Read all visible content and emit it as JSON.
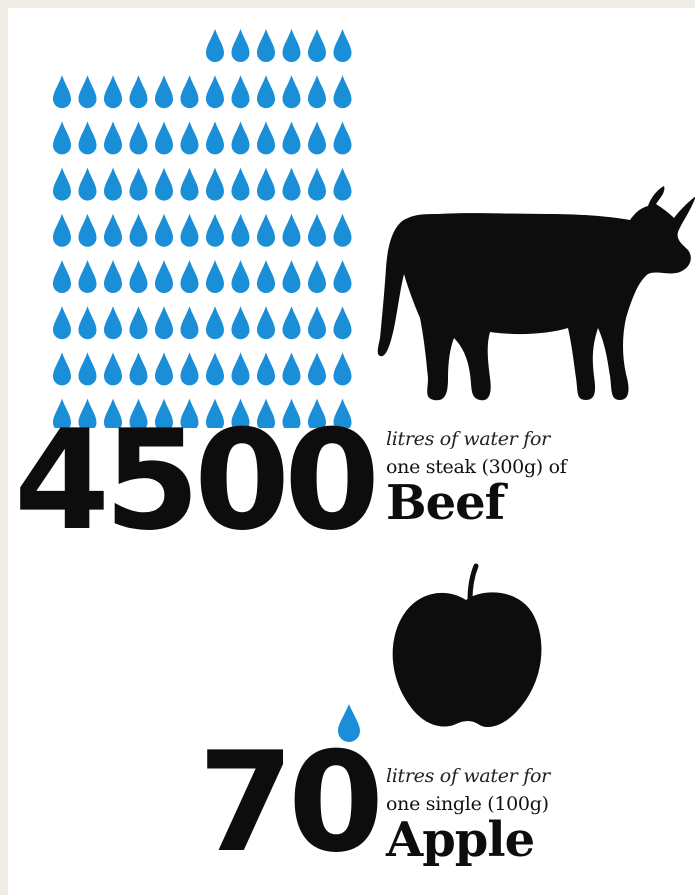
{
  "beef": {
    "amount": "4500",
    "line1": "litres of water for",
    "line2": "one steak (300g) of",
    "food": "Beef"
  },
  "apple": {
    "amount": "70",
    "line1": "litres of water for",
    "line2": "one single (100g)",
    "food": "Apple"
  },
  "colors": {
    "water_drop": "#1a8fd8",
    "silhouette": "#0d0d0d",
    "background": "#ffffff"
  },
  "icons": [
    "water-drop-icon",
    "cow-icon",
    "apple-icon"
  ]
}
